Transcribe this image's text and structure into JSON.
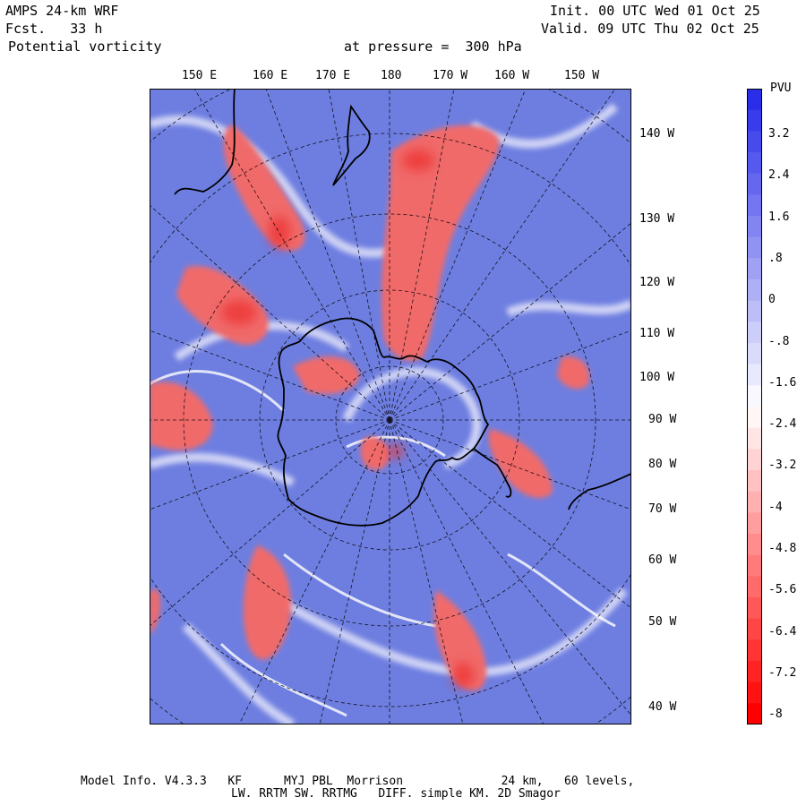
{
  "header": {
    "model": "AMPS 24-km WRF",
    "fcst": "Fcst.   33 h",
    "field": "Potential vorticity",
    "level": "at pressure =  300 hPa",
    "init": "Init. 00 UTC Wed 01 Oct 25",
    "valid": "Valid. 09 UTC Thu 02 Oct 25"
  },
  "map": {
    "top_ticks": [
      "150 E",
      "160 E",
      "170 E",
      "180",
      "170 W",
      "160 W",
      "150 W"
    ],
    "right_ticks": [
      "140 W",
      "130 W",
      "120 W",
      "110 W",
      "100 W",
      "90 W",
      "80 W",
      "70 W",
      "60 W",
      "50 W",
      "40 W"
    ],
    "projection": "polar stereographic"
  },
  "legend": {
    "unit": "PVU",
    "labels": [
      "3.2",
      "2.4",
      "1.6",
      ".8",
      "0",
      "-.8",
      "-1.6",
      "-2.4",
      "-3.2",
      "-4",
      "-4.8",
      "-5.6",
      "-6.4",
      "-7.2",
      "-8"
    ],
    "min": -8,
    "max": 4,
    "colors": {
      "high": "#2a2ee8",
      "mid": "#ffffff",
      "low": "#ff0000",
      "field": "#6e7ee0",
      "positive": "#f06a6a"
    }
  },
  "footer": {
    "line1": "Model Info. V4.3.3   KF      MYJ PBL  Morrison              24 km,   60 levels,",
    "line2": "LW. RRTM SW. RRTMG   DIFF. simple KM. 2D Smagor"
  }
}
